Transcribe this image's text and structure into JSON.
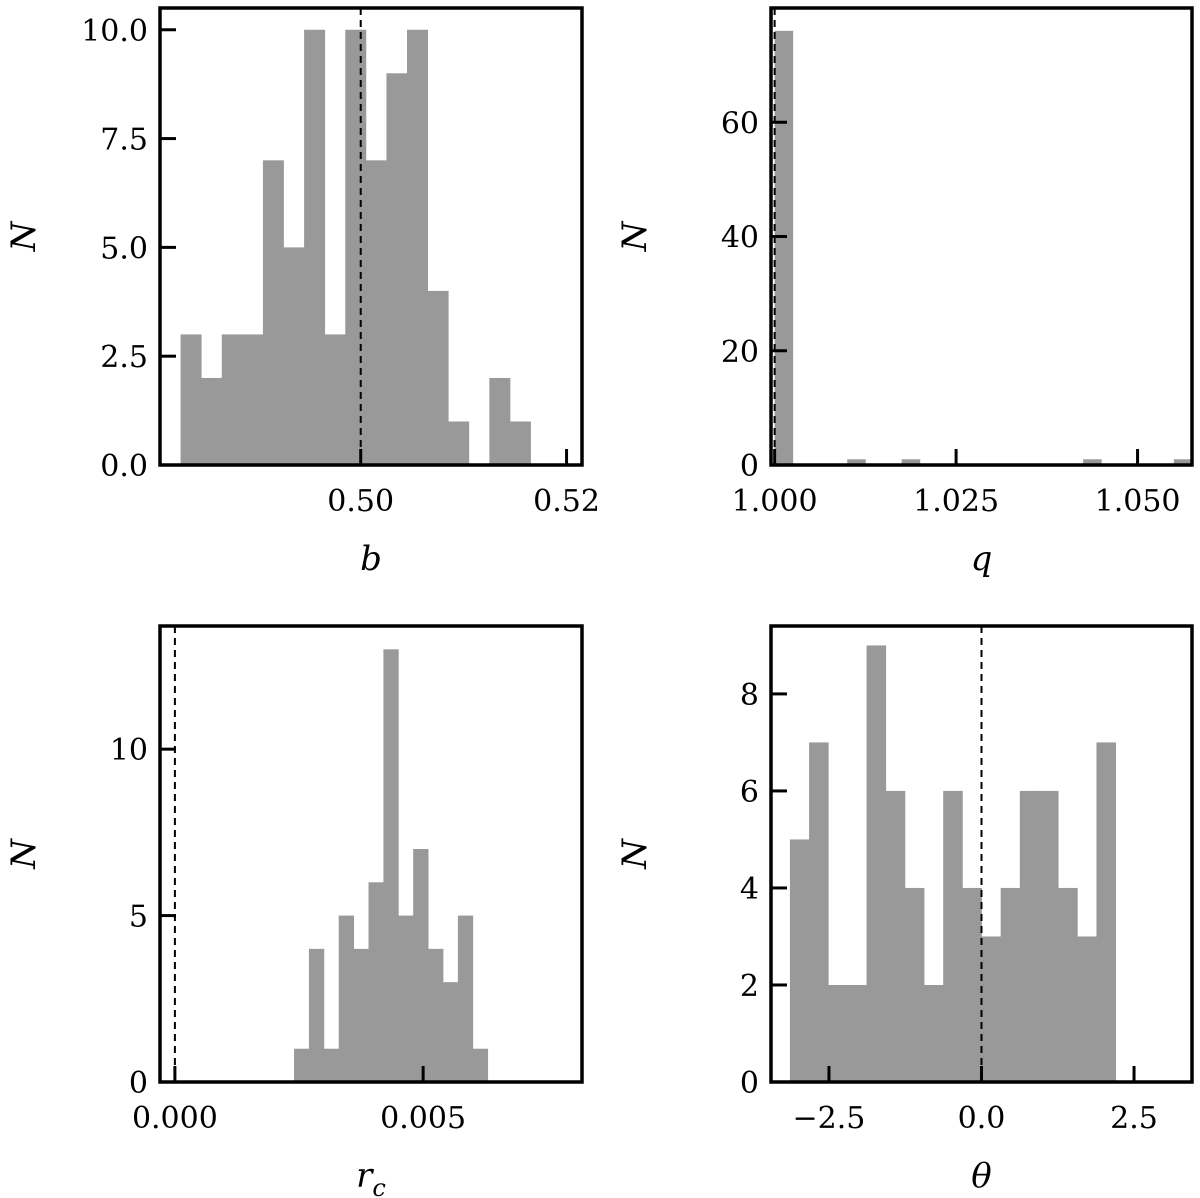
{
  "chart_data": [
    {
      "id": "b",
      "type": "bar",
      "subtype": "histogram",
      "xlabel": "b",
      "ylabel": "N",
      "xlim": [
        0.4805,
        0.5215
      ],
      "ylim": [
        0,
        10.5
      ],
      "xticks": [
        0.5,
        0.52
      ],
      "xtick_labels": [
        "0.50",
        "0.52"
      ],
      "yticks": [
        0,
        2.5,
        5,
        7.5,
        10
      ],
      "ytick_labels": [
        "0.0",
        "2.5",
        "5.0",
        "7.5",
        "10.0"
      ],
      "bin_start": 0.4825,
      "bin_width": 0.002,
      "counts": [
        3,
        2,
        3,
        3,
        7,
        5,
        10,
        3,
        10,
        7,
        9,
        10,
        4,
        1,
        0,
        2,
        1,
        0
      ],
      "reference_line": 0.5,
      "bar_color": "#999999"
    },
    {
      "id": "q",
      "type": "bar",
      "subtype": "histogram",
      "xlabel": "q",
      "ylabel": "N",
      "xlim": [
        0.9995,
        1.0575
      ],
      "ylim": [
        0,
        80
      ],
      "xticks": [
        1.0,
        1.025,
        1.05
      ],
      "xtick_labels": [
        "1.000",
        "1.025",
        "1.050"
      ],
      "yticks": [
        0,
        20,
        40,
        60
      ],
      "ytick_labels": [
        "0",
        "20",
        "40",
        "60"
      ],
      "bin_start": 1.0,
      "bin_width": 0.0025,
      "counts": [
        76,
        0,
        0,
        0,
        1,
        0,
        0,
        1,
        0,
        0,
        0,
        0,
        0,
        0,
        0,
        0,
        0,
        1,
        0,
        0,
        0,
        0,
        1
      ],
      "reference_line": 1.0,
      "bar_color": "#999999"
    },
    {
      "id": "rc",
      "type": "bar",
      "subtype": "histogram",
      "xlabel": "r_c",
      "ylabel": "N",
      "xlim": [
        -0.0003,
        0.0082
      ],
      "ylim": [
        0,
        13.7
      ],
      "xticks": [
        0.0,
        0.005
      ],
      "xtick_labels": [
        "0.000",
        "0.005"
      ],
      "yticks": [
        0,
        5,
        10
      ],
      "ytick_labels": [
        "0",
        "5",
        "10"
      ],
      "bin_start": 0.0024,
      "bin_width": 0.0003,
      "counts": [
        1,
        4,
        1,
        5,
        4,
        6,
        13,
        5,
        7,
        4,
        3,
        5,
        1
      ],
      "reference_line": 0.0,
      "bar_color": "#999999"
    },
    {
      "id": "theta",
      "type": "bar",
      "subtype": "histogram",
      "xlabel": "θ",
      "ylabel": "N",
      "xlim": [
        -3.45,
        3.45
      ],
      "ylim": [
        0,
        9.4
      ],
      "xticks": [
        -2.5,
        0.0,
        2.5
      ],
      "xtick_labels": [
        "−2.5",
        "0.0",
        "2.5"
      ],
      "yticks": [
        0,
        2,
        4,
        6,
        8
      ],
      "ytick_labels": [
        "0",
        "2",
        "4",
        "6",
        "8"
      ],
      "bin_start": -3.14,
      "bin_width": 0.314,
      "counts": [
        5,
        7,
        2,
        2,
        9,
        6,
        4,
        2,
        6,
        4,
        3,
        4,
        6,
        6,
        4,
        3,
        7,
        0,
        0,
        0
      ],
      "reference_line": 0.0,
      "bar_color": "#999999"
    }
  ],
  "rc_label": {
    "main": "r",
    "sub": "c"
  }
}
